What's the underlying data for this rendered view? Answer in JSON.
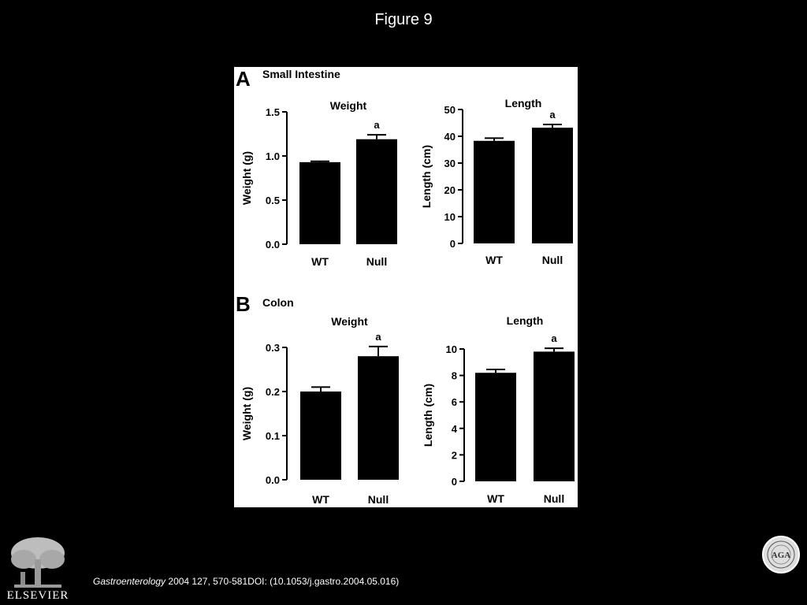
{
  "slide": {
    "title": "Figure 9"
  },
  "citation": {
    "journal": "Gastroenterology",
    "details": " 2004 127, 570-581DOI: (10.1053/j.gastro.2004.05.016)"
  },
  "logos": {
    "publisher": "ELSEVIER",
    "seal_text": "AGA",
    "seal_color": "#dedede"
  },
  "colors": {
    "bar": "#000000",
    "background": "#000000",
    "panel": "#ffffff"
  },
  "chart_data": [
    {
      "panel_label": "A",
      "panel_title": "Small Intestine",
      "type": "bar",
      "title": "Weight",
      "ylabel": "Weight (g)",
      "categories": [
        "WT",
        "Null"
      ],
      "values": [
        0.93,
        1.19
      ],
      "errors": [
        0.01,
        0.05
      ],
      "annotations": [
        "",
        "a"
      ],
      "ylim": [
        0,
        1.5
      ],
      "yticks": [
        0,
        0.5,
        1.0,
        1.5
      ],
      "ytick_labels": [
        "0.0",
        "0.5",
        "1.0",
        "1.5"
      ]
    },
    {
      "panel_label": "",
      "panel_title": "",
      "type": "bar",
      "title": "Length",
      "ylabel": "Length (cm)",
      "categories": [
        "WT",
        "Null"
      ],
      "values": [
        38.3,
        43.2
      ],
      "errors": [
        1.0,
        1.2
      ],
      "annotations": [
        "",
        "a"
      ],
      "ylim": [
        0,
        50
      ],
      "yticks": [
        0,
        10,
        20,
        30,
        40,
        50
      ],
      "ytick_labels": [
        "0",
        "10",
        "20",
        "30",
        "40",
        "50"
      ]
    },
    {
      "panel_label": "B",
      "panel_title": "Colon",
      "type": "bar",
      "title": "Weight",
      "ylabel": "Weight (g)",
      "categories": [
        "WT",
        "Null"
      ],
      "values": [
        0.2,
        0.28
      ],
      "errors": [
        0.01,
        0.022
      ],
      "annotations": [
        "",
        "a"
      ],
      "ylim": [
        0,
        0.3
      ],
      "yticks": [
        0,
        0.1,
        0.2,
        0.3
      ],
      "ytick_labels": [
        "0.0",
        "0.1",
        "0.2",
        "0.3"
      ]
    },
    {
      "panel_label": "",
      "panel_title": "",
      "type": "bar",
      "title": "Length",
      "ylabel": "Length (cm)",
      "categories": [
        "WT",
        "Null"
      ],
      "values": [
        8.2,
        9.8
      ],
      "errors": [
        0.25,
        0.25
      ],
      "annotations": [
        "",
        "a"
      ],
      "ylim": [
        0,
        10
      ],
      "yticks": [
        0,
        2,
        4,
        6,
        8,
        10
      ],
      "ytick_labels": [
        "0",
        "2",
        "4",
        "6",
        "8",
        "10"
      ]
    }
  ]
}
